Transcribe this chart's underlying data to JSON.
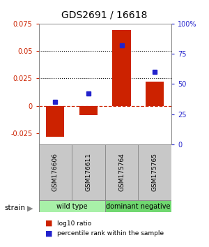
{
  "title": "GDS2691 / 16618",
  "samples": [
    "GSM176606",
    "GSM176611",
    "GSM175764",
    "GSM175765"
  ],
  "log10_ratio": [
    -0.028,
    -0.008,
    0.069,
    0.022
  ],
  "percentile": [
    35,
    42,
    82,
    60
  ],
  "groups": [
    {
      "label": "wild type",
      "samples": [
        0,
        1
      ],
      "color": "#A8F0A8"
    },
    {
      "label": "dominant negative",
      "samples": [
        2,
        3
      ],
      "color": "#70D870"
    }
  ],
  "strain_label": "strain",
  "ylim_left": [
    -0.035,
    0.075
  ],
  "ylim_right": [
    0,
    100
  ],
  "yticks_left": [
    -0.025,
    0,
    0.025,
    0.05,
    0.075
  ],
  "yticks_right": [
    0,
    25,
    50,
    75,
    100
  ],
  "ytick_labels_left": [
    "-0.025",
    "0",
    "0.025",
    "0.05",
    "0.075"
  ],
  "ytick_labels_right": [
    "0",
    "25",
    "50",
    "75",
    "100%"
  ],
  "hlines": [
    0.025,
    0.05
  ],
  "bar_color": "#CC2200",
  "dot_color": "#2222CC",
  "zero_line_color": "#CC2200",
  "background_color": "#FFFFFF",
  "bar_width": 0.55,
  "legend_red": "log10 ratio",
  "legend_blue": "percentile rank within the sample",
  "sample_box_color": "#C8C8C8"
}
